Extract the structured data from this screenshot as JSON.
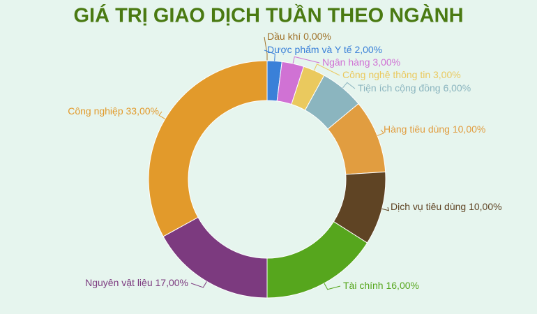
{
  "chart_data": {
    "type": "donut",
    "title": "GIÁ TRỊ GIAO DỊCH TUẦN THEO NGÀNH",
    "categories": [
      "Dầu khí",
      "Dược phẩm và Y tế",
      "Ngân hàng",
      "Công nghệ thông tin",
      "Tiện ích cộng đồng",
      "Hàng tiêu dùng",
      "Dịch vụ tiêu dùng",
      "Tài chính",
      "Nguyên vật liệu",
      "Công nghiệp"
    ],
    "values": [
      0,
      2,
      3,
      3,
      6,
      10,
      10,
      16,
      17,
      33
    ],
    "value_labels": [
      "0,00%",
      "2,00%",
      "3,00%",
      "3,00%",
      "6,00%",
      "10,00%",
      "10,00%",
      "16,00%",
      "17,00%",
      "33,00%"
    ],
    "colors": [
      "#a0722a",
      "#3a80d8",
      "#d072d4",
      "#eac95e",
      "#8bb5bf",
      "#e19d40",
      "#5f4424",
      "#56a61d",
      "#7c3a7f",
      "#e29a2b"
    ]
  }
}
